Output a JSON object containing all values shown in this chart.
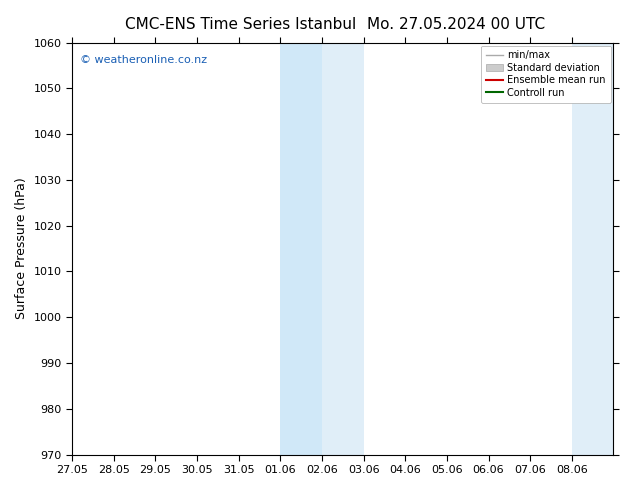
{
  "title_left": "CMC-ENS Time Series Istanbul",
  "title_right": "Mo. 27.05.2024 00 UTC",
  "ylabel": "Surface Pressure (hPa)",
  "ylim": [
    970,
    1060
  ],
  "yticks": [
    970,
    980,
    990,
    1000,
    1010,
    1020,
    1030,
    1040,
    1050,
    1060
  ],
  "xlim_start": 0,
  "xlim_end": 39,
  "xtick_labels": [
    "27.05",
    "28.05",
    "29.05",
    "30.05",
    "31.05",
    "01.06",
    "02.06",
    "03.06",
    "04.06",
    "05.06",
    "06.06",
    "07.06",
    "08.06"
  ],
  "xtick_positions": [
    0,
    3,
    6,
    9,
    12,
    15,
    18,
    21,
    24,
    27,
    30,
    33,
    36
  ],
  "shaded_region_1_start": 15,
  "shaded_region_1_end": 18,
  "shaded_region_1_color": "#d0e8f8",
  "shaded_region_2_start": 18,
  "shaded_region_2_end": 21,
  "shaded_region_2_color": "#e0eef8",
  "shaded_region_right_start": 36,
  "shaded_region_right_end": 39,
  "shaded_region_right_color": "#e0eef8",
  "watermark_text": "© weatheronline.co.nz",
  "watermark_color": "#1a5fb4",
  "background_color": "#ffffff",
  "plot_bg_color": "#ffffff",
  "legend_labels": [
    "min/max",
    "Standard deviation",
    "Ensemble mean run",
    "Controll run"
  ],
  "legend_colors_line": [
    "#aaaaaa",
    "#bbbbbb",
    "#cc0000",
    "#006600"
  ],
  "title_fontsize": 11,
  "label_fontsize": 9,
  "tick_fontsize": 8,
  "spine_color": "#000000",
  "tick_color": "#000000"
}
